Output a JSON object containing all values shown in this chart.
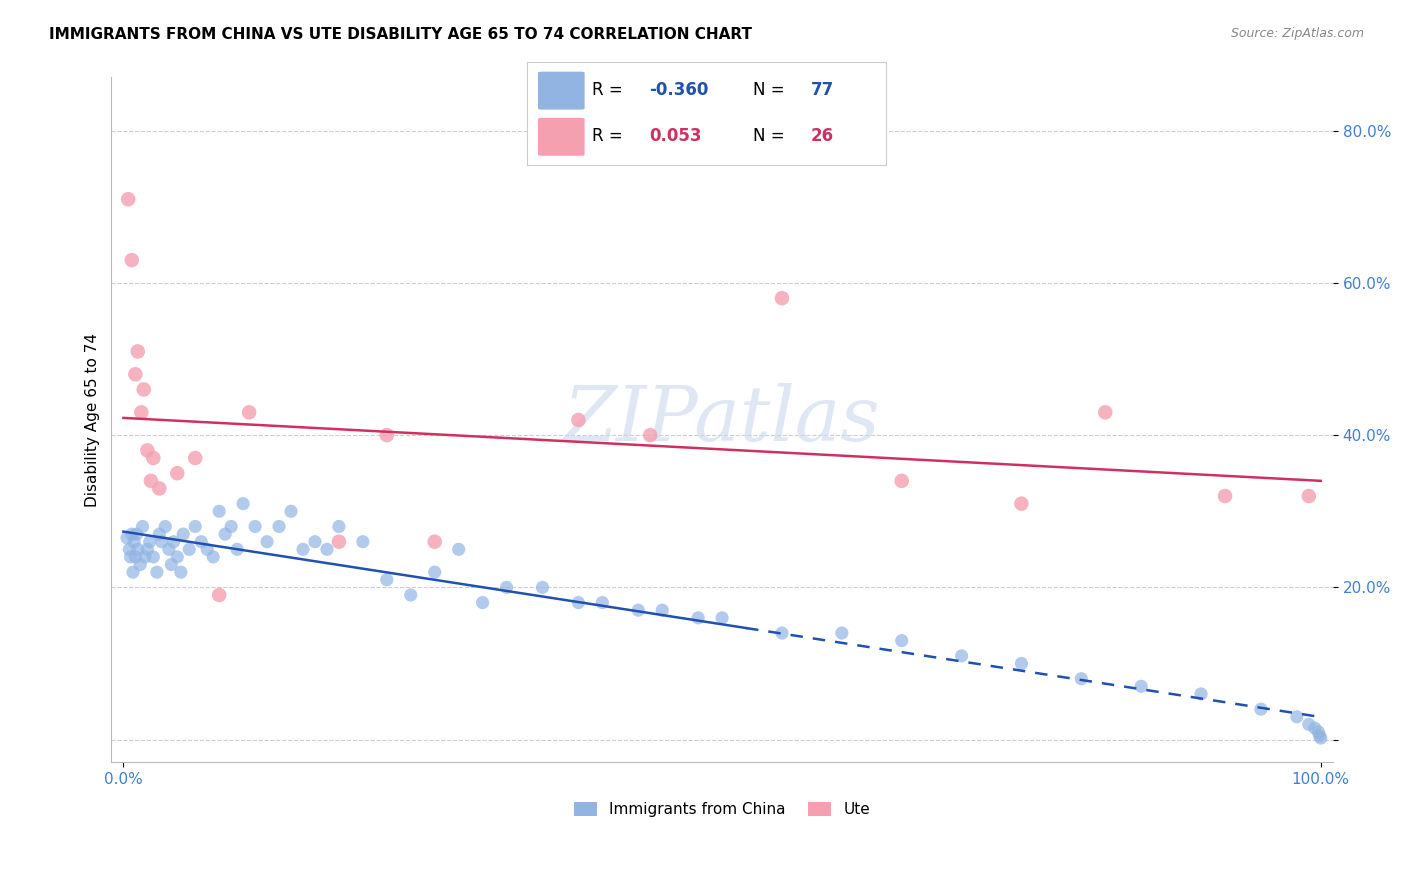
{
  "title": "IMMIGRANTS FROM CHINA VS UTE DISABILITY AGE 65 TO 74 CORRELATION CHART",
  "source": "Source: ZipAtlas.com",
  "ylabel": "Disability Age 65 to 74",
  "legend_blue_R": "-0.360",
  "legend_blue_N": "77",
  "legend_pink_R": "0.053",
  "legend_pink_N": "26",
  "blue_color": "#92b4e3",
  "pink_color": "#f4a0b0",
  "blue_line_color": "#2050b0",
  "pink_line_color": "#d03060",
  "watermark": "ZIPatlas",
  "axis_color": "#4080d0",
  "grid_color": "#cccccc",
  "blue_scatter_x": [
    0.3,
    0.5,
    0.6,
    0.7,
    0.8,
    0.9,
    1.0,
    1.1,
    1.2,
    1.4,
    1.6,
    1.8,
    2.0,
    2.2,
    2.5,
    2.8,
    3.0,
    3.2,
    3.5,
    3.8,
    4.0,
    4.2,
    4.5,
    4.8,
    5.0,
    5.5,
    6.0,
    6.5,
    7.0,
    7.5,
    8.0,
    8.5,
    9.0,
    9.5,
    10.0,
    11.0,
    12.0,
    13.0,
    14.0,
    15.0,
    16.0,
    17.0,
    18.0,
    20.0,
    22.0,
    24.0,
    26.0,
    28.0,
    30.0,
    32.0,
    35.0,
    38.0,
    40.0,
    43.0,
    45.0,
    48.0,
    50.0,
    55.0,
    60.0,
    65.0,
    70.0,
    75.0,
    80.0,
    85.0,
    90.0,
    95.0,
    98.0,
    99.0,
    99.5,
    99.8,
    99.9,
    100.0
  ],
  "blue_scatter_y": [
    0.265,
    0.25,
    0.24,
    0.27,
    0.22,
    0.26,
    0.24,
    0.27,
    0.25,
    0.23,
    0.28,
    0.24,
    0.25,
    0.26,
    0.24,
    0.22,
    0.27,
    0.26,
    0.28,
    0.25,
    0.23,
    0.26,
    0.24,
    0.22,
    0.27,
    0.25,
    0.28,
    0.26,
    0.25,
    0.24,
    0.3,
    0.27,
    0.28,
    0.25,
    0.31,
    0.28,
    0.26,
    0.28,
    0.3,
    0.25,
    0.26,
    0.25,
    0.28,
    0.26,
    0.21,
    0.19,
    0.22,
    0.25,
    0.18,
    0.2,
    0.2,
    0.18,
    0.18,
    0.17,
    0.17,
    0.16,
    0.16,
    0.14,
    0.14,
    0.13,
    0.11,
    0.1,
    0.08,
    0.07,
    0.06,
    0.04,
    0.03,
    0.02,
    0.015,
    0.01,
    0.005,
    0.002
  ],
  "pink_scatter_x": [
    0.4,
    0.7,
    1.0,
    1.2,
    1.5,
    1.7,
    2.0,
    2.3,
    2.5,
    3.0,
    4.5,
    6.0,
    8.0,
    10.5,
    18.0,
    22.0,
    26.0,
    38.0,
    44.0,
    55.0,
    65.0,
    75.0,
    82.0,
    92.0,
    99.0
  ],
  "pink_scatter_y": [
    0.71,
    0.63,
    0.48,
    0.51,
    0.43,
    0.46,
    0.38,
    0.34,
    0.37,
    0.33,
    0.35,
    0.37,
    0.19,
    0.43,
    0.26,
    0.4,
    0.26,
    0.42,
    0.4,
    0.58,
    0.34,
    0.31,
    0.43,
    0.32,
    0.32
  ]
}
